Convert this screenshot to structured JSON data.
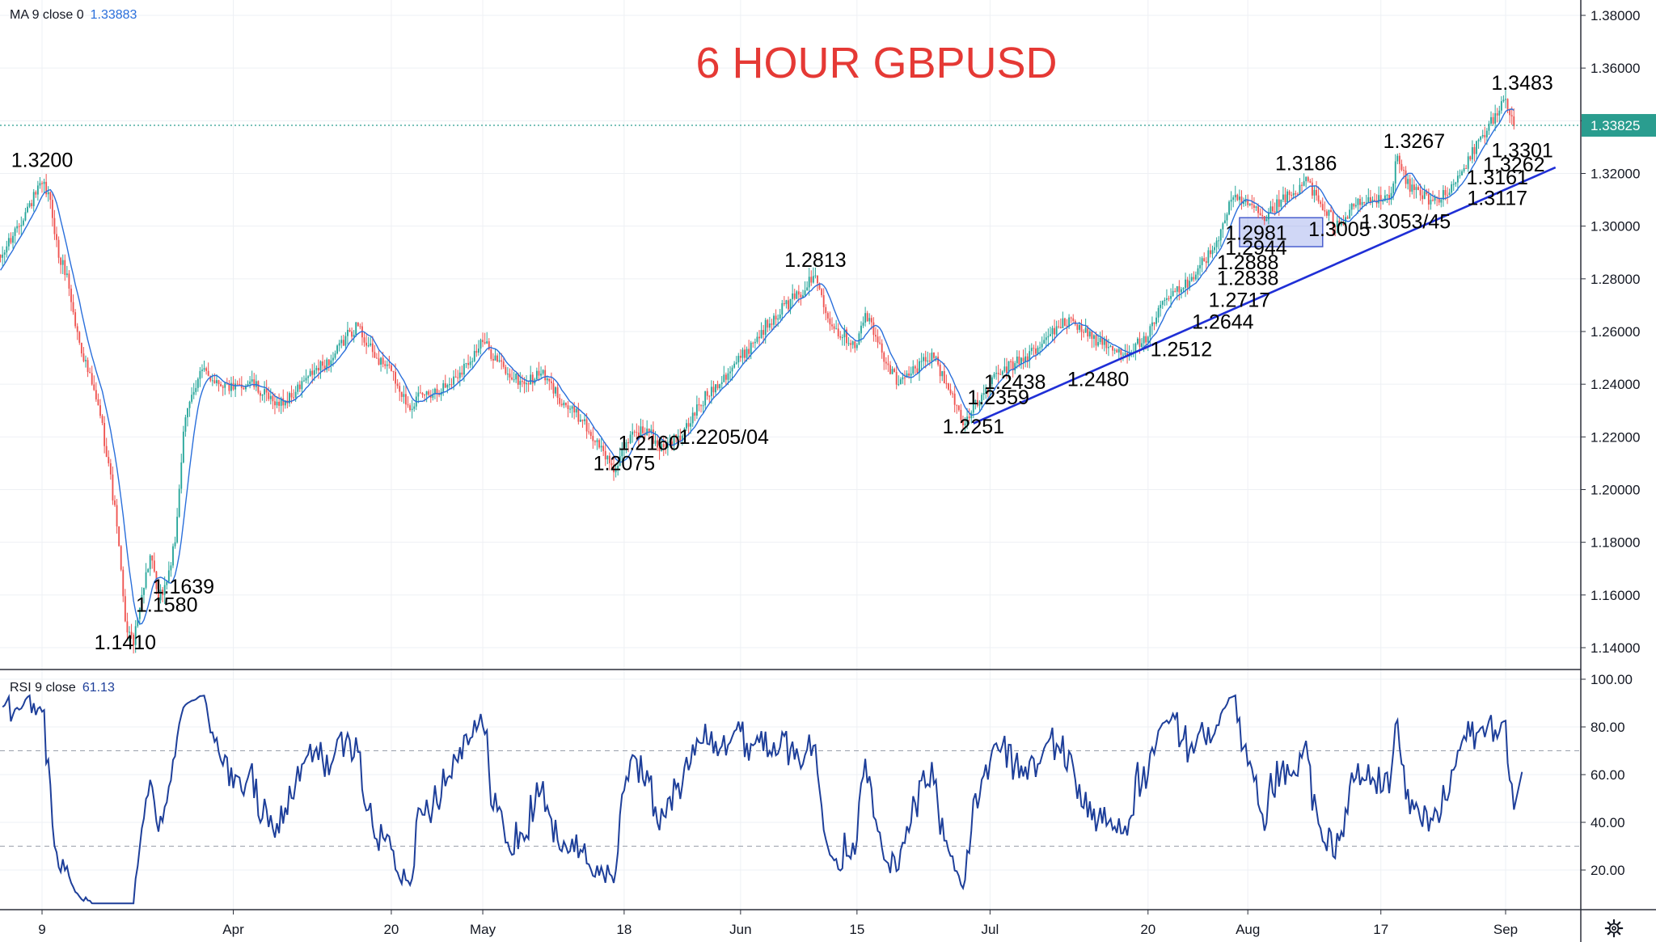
{
  "title": "6 HOUR GBPUSD",
  "colors": {
    "up": "#26a69a",
    "down": "#ef5350",
    "ma": "#2a6fdb",
    "trendline": "#1f2fd6",
    "rsi": "#1e3f9a",
    "title": "#e53935",
    "price_line": "#2a9d8f"
  },
  "ma_legend": {
    "label": "MA 9 close 0",
    "value": "1.33883"
  },
  "rsi_legend": {
    "label": "RSI 9 close",
    "value": "61.13"
  },
  "price_badge": "1.33825",
  "settings_icon": "gear-icon",
  "chart_data": [
    {
      "type": "candlestick",
      "title": "6 HOUR GBPUSD",
      "ylim": [
        1.13,
        1.385
      ],
      "y_ticks": [
        "1.14000",
        "1.16000",
        "1.18000",
        "1.20000",
        "1.22000",
        "1.24000",
        "1.26000",
        "1.28000",
        "1.30000",
        "1.32000",
        "1.34000",
        "1.36000",
        "1.38000"
      ],
      "x_ticks": [
        "9",
        "Apr",
        "20",
        "May",
        "18",
        "Jun",
        "15",
        "Jul",
        "20",
        "Aug",
        "17",
        "Sep"
      ],
      "x_tick_dates": [
        "2020-03-09",
        "2020-04-01",
        "2020-04-20",
        "2020-05-01",
        "2020-05-18",
        "2020-06-01",
        "2020-06-15",
        "2020-07-01",
        "2020-07-20",
        "2020-08-01",
        "2020-08-17",
        "2020-09-01"
      ],
      "date_range": [
        "2020-03-02",
        "2020-09-02"
      ],
      "path": [
        [
          "2020-03-02",
          1.278
        ],
        [
          "2020-03-04",
          1.288
        ],
        [
          "2020-03-06",
          1.3
        ],
        [
          "2020-03-09",
          1.316
        ],
        [
          "2020-03-10",
          1.31
        ],
        [
          "2020-03-11",
          1.288
        ],
        [
          "2020-03-12",
          1.282
        ],
        [
          "2020-03-13",
          1.262
        ],
        [
          "2020-03-16",
          1.228
        ],
        [
          "2020-03-17",
          1.21
        ],
        [
          "2020-03-18",
          1.186
        ],
        [
          "2020-03-19",
          1.15
        ],
        [
          "2020-03-20",
          1.141
        ],
        [
          "2020-03-21",
          1.16
        ],
        [
          "2020-03-22",
          1.175
        ],
        [
          "2020-03-23",
          1.158
        ],
        [
          "2020-03-24",
          1.165
        ],
        [
          "2020-03-25",
          1.18
        ],
        [
          "2020-03-26",
          1.222
        ],
        [
          "2020-03-27",
          1.236
        ],
        [
          "2020-03-28",
          1.245
        ],
        [
          "2020-04-01",
          1.238
        ],
        [
          "2020-04-03",
          1.241
        ],
        [
          "2020-04-06",
          1.232
        ],
        [
          "2020-04-08",
          1.235
        ],
        [
          "2020-04-10",
          1.243
        ],
        [
          "2020-04-13",
          1.25
        ],
        [
          "2020-04-15",
          1.26
        ],
        [
          "2020-04-16",
          1.262
        ],
        [
          "2020-04-18",
          1.25
        ],
        [
          "2020-04-20",
          1.245
        ],
        [
          "2020-04-22",
          1.232
        ],
        [
          "2020-04-24",
          1.236
        ],
        [
          "2020-04-27",
          1.24
        ],
        [
          "2020-04-29",
          1.248
        ],
        [
          "2020-05-01",
          1.256
        ],
        [
          "2020-05-04",
          1.244
        ],
        [
          "2020-05-06",
          1.24
        ],
        [
          "2020-05-08",
          1.244
        ],
        [
          "2020-05-11",
          1.232
        ],
        [
          "2020-05-13",
          1.226
        ],
        [
          "2020-05-15",
          1.216
        ],
        [
          "2020-05-17",
          1.2075
        ],
        [
          "2020-05-19",
          1.222
        ],
        [
          "2020-05-21",
          1.222
        ],
        [
          "2020-05-22",
          1.216
        ],
        [
          "2020-05-25",
          1.2205
        ],
        [
          "2020-05-27",
          1.232
        ],
        [
          "2020-05-29",
          1.24
        ],
        [
          "2020-06-01",
          1.25
        ],
        [
          "2020-06-03",
          1.258
        ],
        [
          "2020-06-05",
          1.266
        ],
        [
          "2020-06-08",
          1.274
        ],
        [
          "2020-06-10",
          1.2813
        ],
        [
          "2020-06-12",
          1.262
        ],
        [
          "2020-06-15",
          1.255
        ],
        [
          "2020-06-16",
          1.267
        ],
        [
          "2020-06-18",
          1.252
        ],
        [
          "2020-06-20",
          1.24
        ],
        [
          "2020-06-22",
          1.246
        ],
        [
          "2020-06-24",
          1.252
        ],
        [
          "2020-06-26",
          1.238
        ],
        [
          "2020-06-28",
          1.2251
        ],
        [
          "2020-06-30",
          1.236
        ],
        [
          "2020-07-02",
          1.2438
        ],
        [
          "2020-07-04",
          1.248
        ],
        [
          "2020-07-07",
          1.254
        ],
        [
          "2020-07-09",
          1.262
        ],
        [
          "2020-07-11",
          1.264
        ],
        [
          "2020-07-14",
          1.256
        ],
        [
          "2020-07-17",
          1.2512
        ],
        [
          "2020-07-20",
          1.258
        ],
        [
          "2020-07-22",
          1.272
        ],
        [
          "2020-07-24",
          1.276
        ],
        [
          "2020-07-26",
          1.284
        ],
        [
          "2020-07-28",
          1.292
        ],
        [
          "2020-07-30",
          1.31
        ],
        [
          "2020-08-01",
          1.308
        ],
        [
          "2020-08-03",
          1.302
        ],
        [
          "2020-08-05",
          1.31
        ],
        [
          "2020-08-07",
          1.312
        ],
        [
          "2020-08-08",
          1.3186
        ],
        [
          "2020-08-10",
          1.306
        ],
        [
          "2020-08-12",
          1.3005
        ],
        [
          "2020-08-14",
          1.308
        ],
        [
          "2020-08-16",
          1.31
        ],
        [
          "2020-08-18",
          1.31
        ],
        [
          "2020-08-19",
          1.3267
        ],
        [
          "2020-08-20",
          1.316
        ],
        [
          "2020-08-23",
          1.31
        ],
        [
          "2020-08-25",
          1.3117
        ],
        [
          "2020-08-27",
          1.322
        ],
        [
          "2020-08-29",
          1.334
        ],
        [
          "2020-08-31",
          1.342
        ],
        [
          "2020-09-01",
          1.3483
        ],
        [
          "2020-09-02",
          1.338
        ]
      ],
      "annotations": [
        {
          "text": "1.3200",
          "date": "2020-03-09",
          "price": 1.3224
        },
        {
          "text": "1.1639",
          "date": "2020-03-26",
          "price": 1.1606
        },
        {
          "text": "1.1580",
          "date": "2020-03-24",
          "price": 1.1537
        },
        {
          "text": "1.1410",
          "date": "2020-03-19",
          "price": 1.1394
        },
        {
          "text": "1.2813",
          "date": "2020-06-10",
          "price": 1.2846
        },
        {
          "text": "1.2160",
          "date": "2020-05-21",
          "price": 1.2151
        },
        {
          "text": "1.2205/04",
          "date": "2020-05-30",
          "price": 1.2173
        },
        {
          "text": "1.2075",
          "date": "2020-05-18",
          "price": 1.2074
        },
        {
          "text": "1.2251",
          "date": "2020-06-29",
          "price": 1.2214
        },
        {
          "text": "1.2359",
          "date": "2020-07-02",
          "price": 1.2324
        },
        {
          "text": "1.2438",
          "date": "2020-07-04",
          "price": 1.2382
        },
        {
          "text": "1.2480",
          "date": "2020-07-14",
          "price": 1.2393
        },
        {
          "text": "1.2512",
          "date": "2020-07-24",
          "price": 1.2506
        },
        {
          "text": "1.2644",
          "date": "2020-07-29",
          "price": 1.2611
        },
        {
          "text": "1.2717",
          "date": "2020-07-31",
          "price": 1.2693
        },
        {
          "text": "1.2838",
          "date": "2020-08-01",
          "price": 1.2777
        },
        {
          "text": "1.2888",
          "date": "2020-08-01",
          "price": 1.2836
        },
        {
          "text": "1.2944",
          "date": "2020-08-02",
          "price": 1.2891
        },
        {
          "text": "1.2981",
          "date": "2020-08-02",
          "price": 1.2948
        },
        {
          "text": "1.3186",
          "date": "2020-08-08",
          "price": 1.3212
        },
        {
          "text": "1.3005",
          "date": "2020-08-12",
          "price": 1.2962
        },
        {
          "text": "1.3053/45",
          "date": "2020-08-20",
          "price": 1.2991
        },
        {
          "text": "1.3267",
          "date": "2020-08-21",
          "price": 1.3297
        },
        {
          "text": "1.3117",
          "date": "2020-08-31",
          "price": 1.3081
        },
        {
          "text": "1.3161",
          "date": "2020-08-31",
          "price": 1.3158
        },
        {
          "text": "1.3262",
          "date": "2020-09-02",
          "price": 1.3207
        },
        {
          "text": "1.3301",
          "date": "2020-09-03",
          "price": 1.3261
        },
        {
          "text": "1.3483",
          "date": "2020-09-03",
          "price": 1.3517
        }
      ],
      "trendline": {
        "start": [
          "2020-06-29",
          1.2251
        ],
        "end": [
          "2020-09-07",
          1.3223
        ]
      },
      "highlight_box": {
        "from": "2020-07-31",
        "to": "2020-08-10",
        "top": 1.3032,
        "bottom": 1.2922
      },
      "last_price_line": 1.33825
    },
    {
      "type": "line",
      "title": "RSI 9 close",
      "ylim": [
        0,
        100
      ],
      "y_ticks": [
        "20.00",
        "40.00",
        "60.00",
        "80.00",
        "100.00"
      ],
      "reference_lines": [
        30,
        70
      ],
      "last_value": 61.13,
      "series": [
        {
          "name": "RSI 9 close",
          "derived_from": "price"
        }
      ]
    }
  ]
}
